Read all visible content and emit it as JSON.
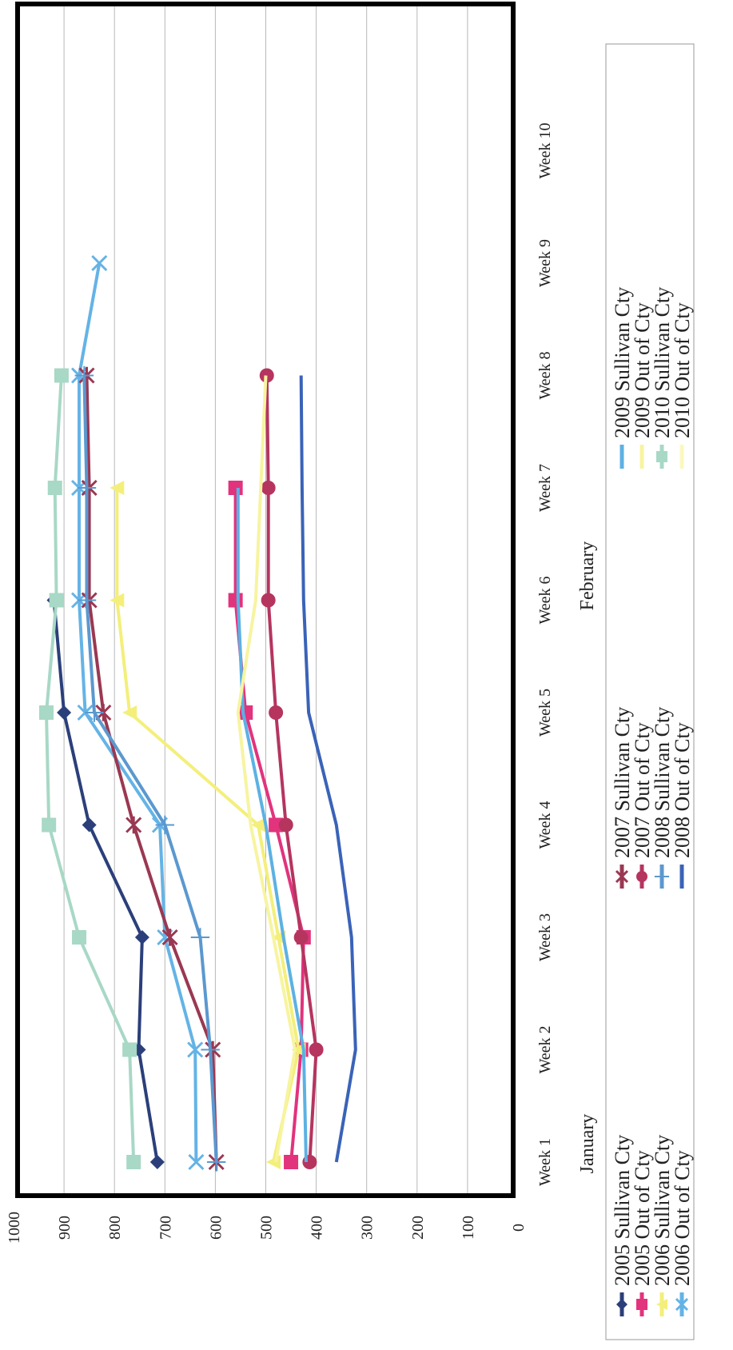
{
  "chart_data": {
    "type": "line",
    "title": "",
    "xlabel": "",
    "ylabel": "",
    "ylim": [
      0,
      1000
    ],
    "yticks": [
      "0",
      "100",
      "200",
      "300",
      "400",
      "500",
      "600",
      "700",
      "800",
      "900",
      "1000"
    ],
    "categories": [
      "Week 1",
      "Week 2",
      "Week 3",
      "Week 4",
      "Week 5",
      "Week 6",
      "Week 7",
      "Week 8",
      "Week 9",
      "Week 10"
    ],
    "month_labels": [
      "January",
      "February"
    ],
    "grid": true,
    "legend_placement": "bottom",
    "series": [
      {
        "name": "2005 Sullivan Cty",
        "color": "#2b3f7a",
        "marker": "diamond",
        "values": [
          715,
          752,
          745,
          850,
          900,
          920,
          null,
          null,
          null,
          null
        ]
      },
      {
        "name": "2005 Out of Cty",
        "color": "#e2337d",
        "marker": "square",
        "values": [
          450,
          430,
          425,
          480,
          540,
          560,
          560,
          null,
          null,
          null
        ]
      },
      {
        "name": "2006 Sullivan Cty",
        "color": "#f3ef7a",
        "marker": "triangle",
        "values": [
          485,
          435,
          475,
          515,
          770,
          795,
          795,
          null,
          null,
          null
        ]
      },
      {
        "name": "2006 Out of Cty",
        "color": "#64b3e6",
        "marker": "x",
        "values": [
          638,
          640,
          700,
          710,
          858,
          870,
          870,
          870,
          830,
          null
        ]
      },
      {
        "name": "2007 Sullivan Cty",
        "color": "#9a3852",
        "marker": "star",
        "values": [
          598,
          605,
          690,
          762,
          822,
          850,
          850,
          855,
          null,
          null
        ]
      },
      {
        "name": "2007 Out of Cty",
        "color": "#b5355f",
        "marker": "circle",
        "values": [
          413,
          400,
          430,
          460,
          480,
          495,
          495,
          498,
          null,
          null
        ]
      },
      {
        "name": "2008 Sullivan Cty",
        "color": "#5b98cf",
        "marker": "plus",
        "values": [
          598,
          610,
          630,
          700,
          840,
          855,
          855,
          860,
          null,
          null
        ]
      },
      {
        "name": "2008 Out of Cty",
        "color": "#3a63b8",
        "marker": "none",
        "values": [
          360,
          322,
          330,
          360,
          415,
          425,
          428,
          430,
          null,
          null
        ]
      },
      {
        "name": "2009 Sullivan Cty",
        "color": "#5cb1e3",
        "marker": "none",
        "values": [
          420,
          425,
          465,
          500,
          545,
          555,
          555,
          null,
          null,
          null
        ]
      },
      {
        "name": "2009 Out of Cty",
        "color": "#f7f4a0",
        "marker": "none",
        "values": [
          480,
          442,
          485,
          530,
          555,
          520,
          510,
          500,
          null,
          null
        ]
      },
      {
        "name": "2010 Sullivan Cty",
        "color": "#a8d8c6",
        "marker": "square",
        "values": [
          762,
          770,
          870,
          930,
          935,
          915,
          918,
          905,
          null,
          null
        ]
      },
      {
        "name": "2010 Out of Cty",
        "color": "#fbf8c0",
        "marker": "none",
        "values": [
          null,
          null,
          null,
          null,
          null,
          null,
          null,
          null,
          null,
          null
        ]
      }
    ]
  }
}
